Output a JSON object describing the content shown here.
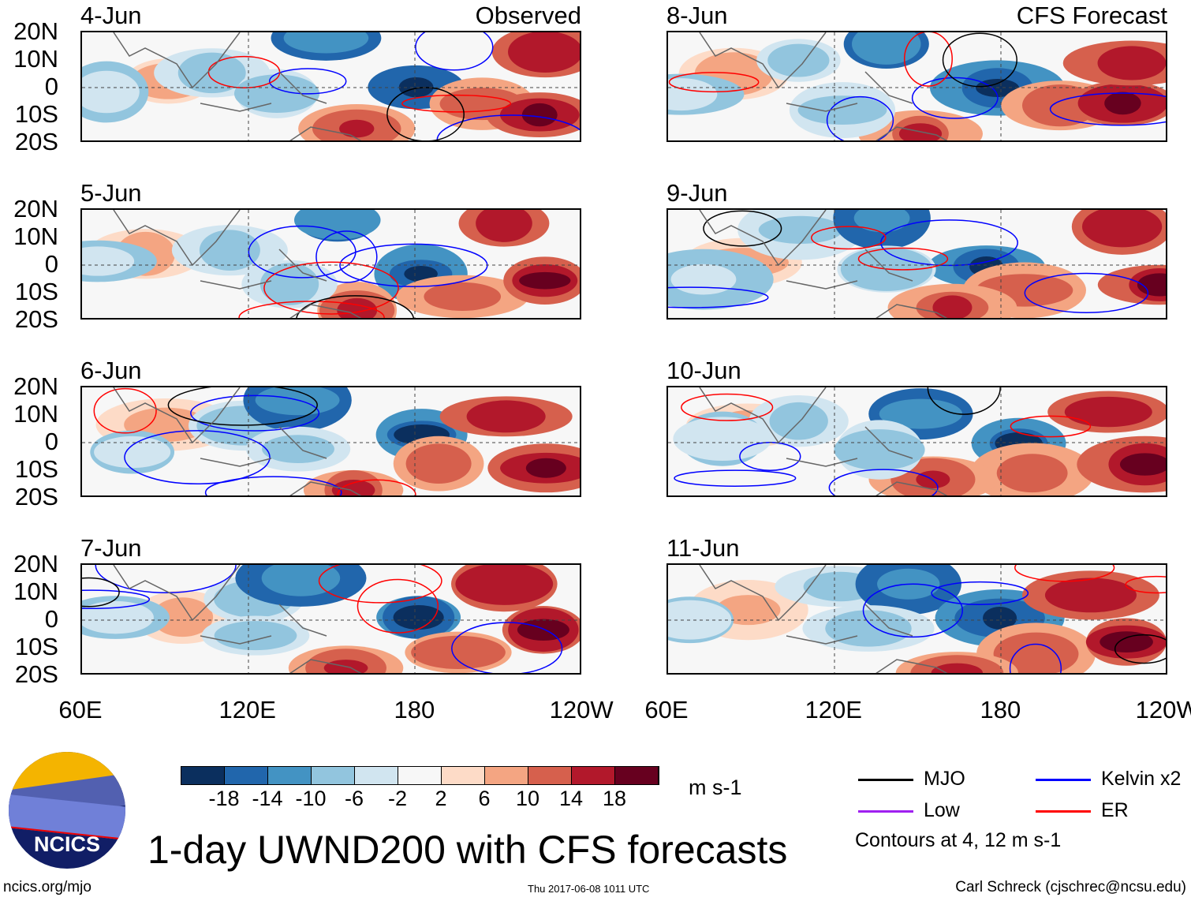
{
  "panels": [
    {
      "date": "4-Jun",
      "tag": "Observed",
      "column": "left"
    },
    {
      "date": "5-Jun",
      "tag": "",
      "column": "left"
    },
    {
      "date": "6-Jun",
      "tag": "",
      "column": "left"
    },
    {
      "date": "7-Jun",
      "tag": "",
      "column": "left"
    },
    {
      "date": "8-Jun",
      "tag": "CFS Forecast",
      "column": "right"
    },
    {
      "date": "9-Jun",
      "tag": "",
      "column": "right"
    },
    {
      "date": "10-Jun",
      "tag": "",
      "column": "right"
    },
    {
      "date": "11-Jun",
      "tag": "",
      "column": "right"
    }
  ],
  "lat_labels": [
    "20N",
    "10N",
    "0",
    "10S",
    "20S"
  ],
  "lon_labels": [
    "60E",
    "120E",
    "180",
    "120W"
  ],
  "colorbar": {
    "colors": [
      "#0b2f5e",
      "#2166ac",
      "#4393c3",
      "#92c5de",
      "#d1e5f0",
      "#f7f7f7",
      "#fddbc7",
      "#f4a582",
      "#d6604d",
      "#b2182b",
      "#67001f"
    ],
    "ticks": [
      "-18",
      "-14",
      "-10",
      "-6",
      "-2",
      "2",
      "6",
      "10",
      "14",
      "18"
    ],
    "units": "m s-1"
  },
  "legend": {
    "items": [
      {
        "label": "MJO",
        "color": "#000000"
      },
      {
        "label": "Kelvin x2",
        "color": "#0000ff"
      },
      {
        "label": "Low",
        "color": "#a020f0"
      },
      {
        "label": "ER",
        "color": "#ff0000"
      }
    ],
    "note": "Contours at 4, 12 m s-1"
  },
  "title": "1-day UWND200 with CFS forecasts",
  "logo_text": "NCICS",
  "footer": {
    "url": "ncics.org/mjo",
    "timestamp": "Thu 2017-06-08 1011 UTC",
    "author": "Carl Schreck (cjschrec@ncsu.edu)"
  }
}
